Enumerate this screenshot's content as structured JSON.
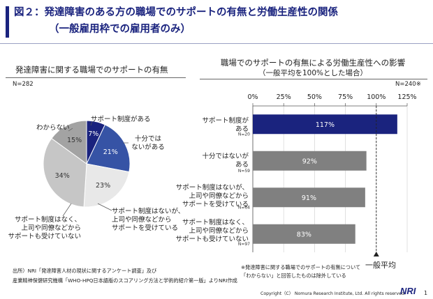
{
  "title": {
    "line1": "図２：発達障害のある方の職場でのサポートの有無と労働生産性の関係",
    "line2": "（一般雇用枠での雇用者のみ）"
  },
  "left": {
    "heading": "発達障害に関する職場でのサポートの有無",
    "n": "N=282"
  },
  "right": {
    "heading": "職場でのサポートの有無による労働生産性への影響",
    "subheading": "（一般平均を100%とした場合）",
    "n": "N=240※",
    "ref_label": "一般平均",
    "note_line1": "※発達障害に関する職場でのサポートの有無について",
    "note_line2": "「わからない」と回答したものは除外している"
  },
  "footer": {
    "source_line1": "出所）NRI「発達障害人材の現状に関するアンケート調査」及び",
    "source_line2": "産業精神保健研究機構「WHO-HPQ日本語版のスコアリング方法と学術的紹介第一版」よりNRI作成",
    "copyright": "Copyright（C） Nomura Research Institute, Ltd. All rights reserved.",
    "logo": "NRI",
    "page": "1"
  },
  "chart_data": [
    {
      "type": "pie",
      "title": "発達障害に関する職場でのサポートの有無",
      "categories": [
        "サポート制度がある",
        "十分ではないがある",
        "サポート制度はないが、上司や同僚などからサポートを受けている",
        "サポート制度はなく、上司や同僚などからサポートも受けていない",
        "わからない"
      ],
      "values": [
        7,
        21,
        23,
        34,
        15
      ],
      "value_labels": [
        "7%",
        "21%",
        "23%",
        "34%",
        "15%"
      ],
      "colors": [
        "#1a237e",
        "#3653a5",
        "#e8e8e8",
        "#c6c6c6",
        "#a3a3a3"
      ],
      "n": "N=282"
    },
    {
      "type": "bar",
      "orientation": "horizontal",
      "title": "職場でのサポートの有無による労働生産性への影響",
      "categories": [
        "サポート制度がある",
        "十分ではないがある",
        "サポート制度はないが、上司や同僚などからサポートを受けている",
        "サポート制度はなく、上司や同僚などからサポートも受けていない"
      ],
      "values": [
        117,
        92,
        91,
        83
      ],
      "value_labels": [
        "117%",
        "92%",
        "91%",
        "83%"
      ],
      "n_labels": [
        "N=20",
        "N=59",
        "N=64",
        "N=97"
      ],
      "xlim": [
        0,
        125
      ],
      "xticks": [
        "0%",
        "25%",
        "50%",
        "75%",
        "100%",
        "125%"
      ],
      "reference_line": 100,
      "colors": [
        "#1a237e",
        "#808080",
        "#808080",
        "#808080"
      ]
    }
  ]
}
